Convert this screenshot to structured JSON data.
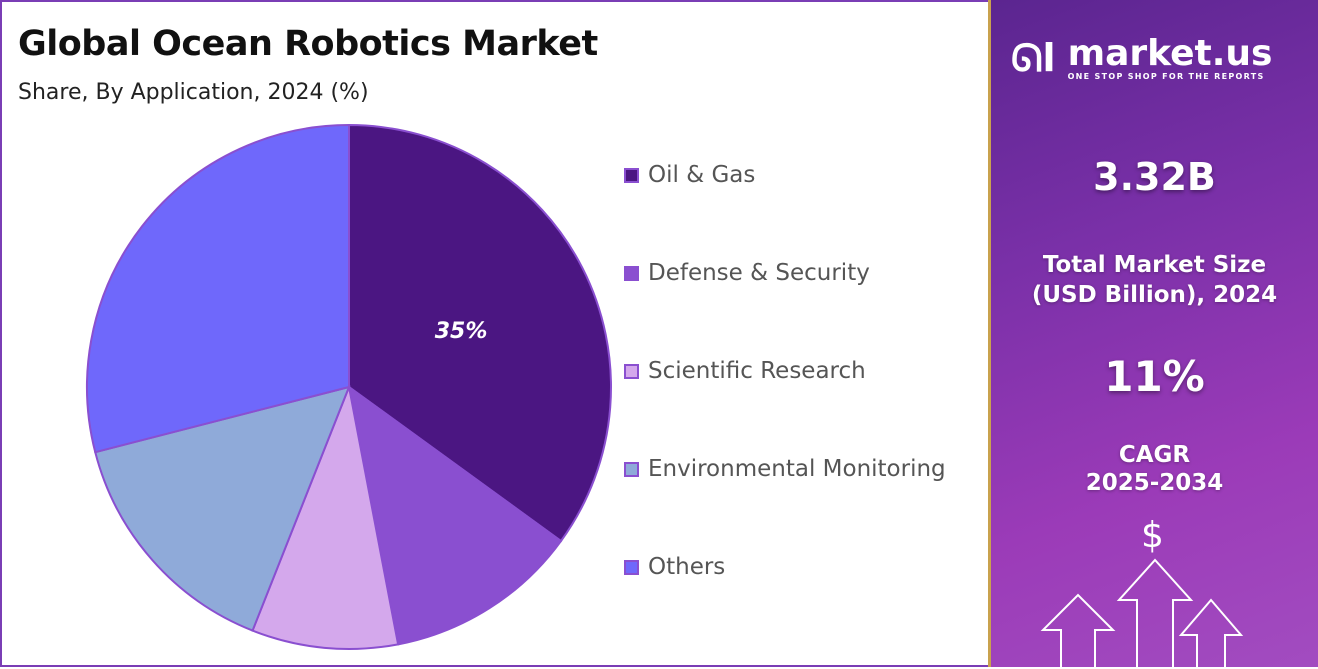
{
  "chart_data": {
    "type": "pie",
    "title": "Global Ocean Robotics Market",
    "subtitle": "Share, By Application, 2024 (%)",
    "categories": [
      "Oil & Gas",
      "Defense & Security",
      "Scientific Research",
      "Environmental Monitoring",
      "Others"
    ],
    "values": [
      35,
      12,
      9,
      15,
      29
    ],
    "colors": [
      "#4b1682",
      "#8a4fd0",
      "#d4a8ec",
      "#8faad9",
      "#6f68fb"
    ],
    "data_labels": [
      "35%",
      "",
      "",
      "",
      ""
    ],
    "legend_position": "right",
    "start_angle": "top, clockwise"
  },
  "panel": {
    "brand": "market.us",
    "tagline": "ONE STOP SHOP FOR THE REPORTS",
    "market_size": "3.32B",
    "market_size_label_1": "Total Market Size",
    "market_size_label_2": "(USD Billion), 2024",
    "cagr": "11%",
    "cagr_label_1": "CAGR",
    "cagr_label_2": "2025-2034",
    "dollar": "$"
  }
}
